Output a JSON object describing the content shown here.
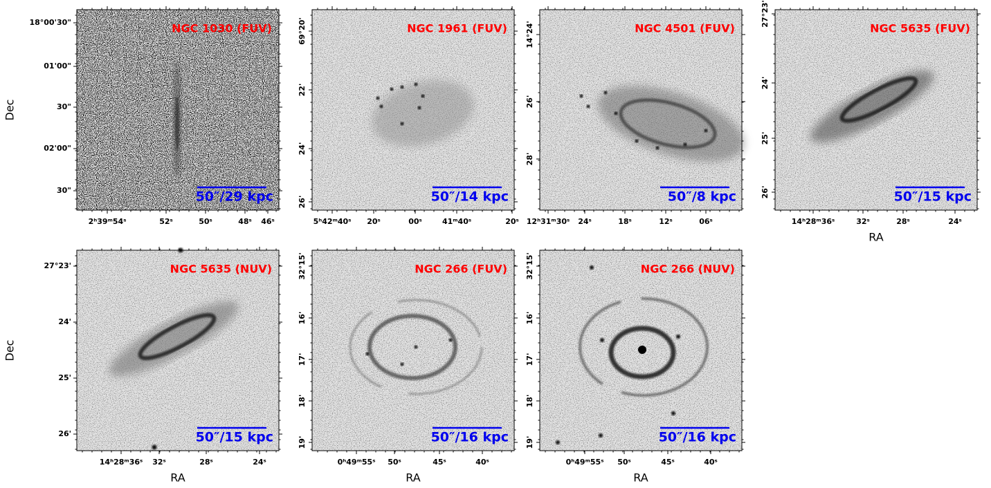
{
  "panels": [
    {
      "title": "NGC 1030 (FUV)",
      "scale_label": "50″/29 kpc",
      "ylabel": "Dec",
      "xticks": [
        "2ʰ39ᵐ54ˢ",
        "52ˢ",
        "50ˢ",
        "48ˢ",
        "46ˢ"
      ],
      "yticks": [
        "18°00'30\"",
        "01'00\"",
        "30\"",
        "02'00\"",
        "30\""
      ]
    },
    {
      "title": "NGC 1961 (FUV)",
      "scale_label": "50″/14 kpc",
      "xticks": [
        "5ʰ42ᵐ40ˢ",
        "20ˢ",
        "00ˢ",
        "41ᵐ40ˢ",
        "20ˢ"
      ],
      "yticks": [
        "69°20'",
        "22'",
        "24'",
        "26'"
      ]
    },
    {
      "title": "NGC 4501 (FUV)",
      "scale_label": "50″/8 kpc",
      "xticks": [
        "12ʰ31ᵐ30ˢ",
        "24ˢ",
        "18ˢ",
        "12ˢ",
        "06ˢ"
      ],
      "yticks": [
        "14°24'",
        "26'",
        "28'"
      ]
    },
    {
      "title": "NGC 5635 (FUV)",
      "scale_label": "50″/15 kpc",
      "xlabel": "RA",
      "xticks": [
        "14ʰ28ᵐ36ˢ",
        "32ˢ",
        "28ˢ",
        "24ˢ"
      ],
      "yticks": [
        "27°23'",
        "24'",
        "25'",
        "26'"
      ]
    },
    {
      "title": "NGC 5635 (NUV)",
      "scale_label": "50″/15 kpc",
      "xlabel": "RA",
      "ylabel": "Dec",
      "xticks": [
        "14ʰ28ᵐ36ˢ",
        "32ˢ",
        "28ˢ",
        "24ˢ"
      ],
      "yticks": [
        "27°23'",
        "24'",
        "25'",
        "26'"
      ]
    },
    {
      "title": "NGC 266 (FUV)",
      "scale_label": "50″/16 kpc",
      "xlabel": "RA",
      "xticks": [
        "0ʰ49ᵐ55ˢ",
        "50ˢ",
        "45ˢ",
        "40ˢ"
      ],
      "yticks": [
        "32°15'",
        "16'",
        "17'",
        "18'",
        "19'"
      ]
    },
    {
      "title": "NGC 266 (NUV)",
      "scale_label": "50″/16 kpc",
      "xlabel": "RA",
      "xticks": [
        "0ʰ49ᵐ55ˢ",
        "50ˢ",
        "45ˢ",
        "40ˢ"
      ],
      "yticks": [
        "32°15'",
        "16'",
        "17'",
        "18'",
        "19'"
      ]
    }
  ]
}
